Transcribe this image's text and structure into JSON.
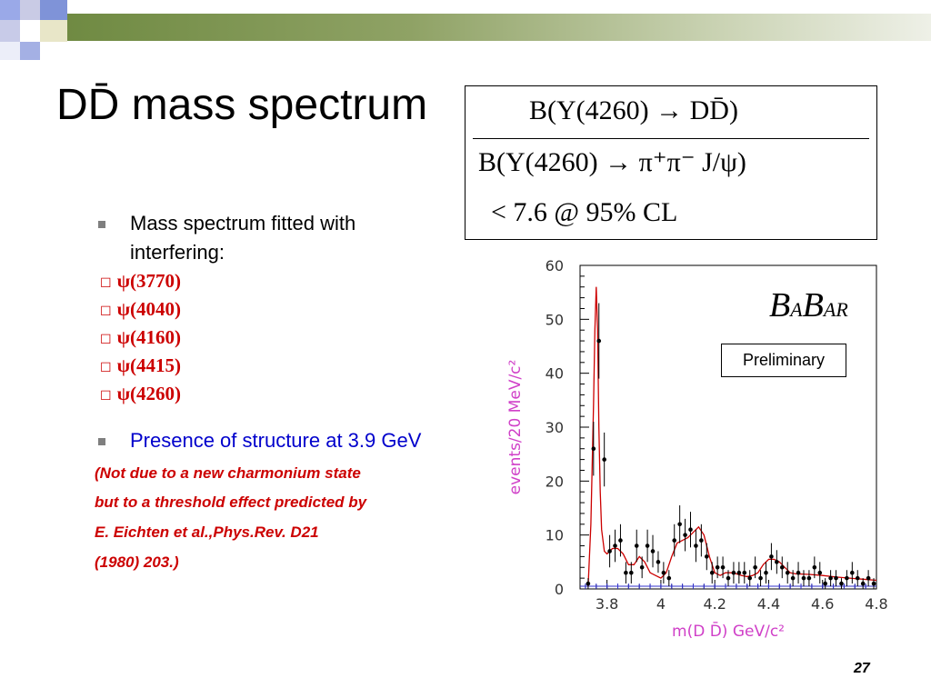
{
  "slide": {
    "title": "DD̄ mass spectrum",
    "page_number": "27"
  },
  "formula": {
    "numerator": "B(Y(4260) → DD̄)",
    "denominator": "B(Y(4260) → π⁺π⁻ J/ψ)",
    "limit": "< 7.6 @ 95% CL"
  },
  "bullets": [
    {
      "text": "Mass spectrum fitted with"
    },
    {
      "text": "interfering:"
    }
  ],
  "resonances": [
    "ψ(3770)",
    "ψ(4040)",
    "ψ(4160)",
    "ψ(4415)",
    "ψ(4260)"
  ],
  "structure_bullet": "Presence of structure at 3.9 GeV",
  "notes": [
    "(Not due to a new charmonium state",
    "but to a threshold effect predicted by",
    " E. Eichten et al.,Phys.Rev. D21",
    "(1980) 203.)"
  ],
  "colors": {
    "accent_red": "#cc0000",
    "bullet_blue": "#0000cc",
    "axis_label_magenta": "#d040c8",
    "fit_red": "#cc0000",
    "background_blue": "#3333cc"
  },
  "chart_data": {
    "type": "scatter",
    "xlabel": "m(D D̄) GeV/c²",
    "ylabel": "events/20 MeV/c²",
    "xlim": [
      3.7,
      4.8
    ],
    "ylim": [
      0,
      60
    ],
    "xticks": [
      "3.8",
      "4",
      "4.2",
      "4.4",
      "4.6",
      "4.8"
    ],
    "yticks": [
      "0",
      "10",
      "20",
      "30",
      "40",
      "50",
      "60"
    ],
    "logo": {
      "main1": "B",
      "small1": "A",
      "main2": "B",
      "small2": "AR"
    },
    "annotation": "Preliminary",
    "series": [
      {
        "kind": "points",
        "x": [
          3.73,
          3.75,
          3.77,
          3.79,
          3.81,
          3.83,
          3.85,
          3.87,
          3.89,
          3.91,
          3.93,
          3.95,
          3.97,
          3.99,
          4.01,
          4.03,
          4.05,
          4.07,
          4.09,
          4.11,
          4.13,
          4.15,
          4.17,
          4.19,
          4.21,
          4.23,
          4.25,
          4.27,
          4.29,
          4.31,
          4.33,
          4.35,
          4.37,
          4.39,
          4.41,
          4.43,
          4.45,
          4.47,
          4.49,
          4.51,
          4.53,
          4.55,
          4.57,
          4.59,
          4.61,
          4.63,
          4.65,
          4.67,
          4.69,
          4.71,
          4.73,
          4.75,
          4.77,
          4.79
        ],
        "y": [
          1,
          26,
          46,
          24,
          7,
          8,
          9,
          3,
          3,
          8,
          4,
          8,
          7,
          5,
          3,
          2,
          9,
          12,
          10,
          11,
          8,
          9,
          6,
          3,
          4,
          4,
          2,
          3,
          3,
          3,
          2,
          4,
          2,
          3,
          6,
          5,
          4,
          3,
          2,
          3,
          2,
          2,
          4,
          3,
          1,
          2,
          2,
          1,
          2,
          3,
          2,
          1,
          2,
          1
        ],
        "err": [
          1,
          5,
          7,
          5,
          3,
          3,
          3,
          2,
          2,
          3,
          2,
          3,
          3,
          2,
          2,
          1.5,
          3,
          3.5,
          3,
          3.3,
          3,
          3,
          2.5,
          2,
          2,
          2,
          1.5,
          2,
          2,
          2,
          1.5,
          2,
          1.5,
          2,
          2.5,
          2.2,
          2,
          2,
          1.5,
          2,
          1.5,
          1.5,
          2,
          2,
          1,
          1.5,
          1.5,
          1,
          1.5,
          2,
          1.5,
          1,
          1.5,
          1
        ]
      },
      {
        "kind": "fit",
        "x": [
          3.73,
          3.74,
          3.75,
          3.755,
          3.76,
          3.765,
          3.77,
          3.775,
          3.78,
          3.79,
          3.8,
          3.82,
          3.84,
          3.86,
          3.88,
          3.9,
          3.92,
          3.94,
          3.96,
          3.98,
          4.0,
          4.02,
          4.04,
          4.06,
          4.08,
          4.1,
          4.12,
          4.14,
          4.16,
          4.18,
          4.2,
          4.22,
          4.24,
          4.26,
          4.28,
          4.3,
          4.32,
          4.34,
          4.36,
          4.38,
          4.4,
          4.42,
          4.44,
          4.46,
          4.48,
          4.5,
          4.55,
          4.6,
          4.65,
          4.7,
          4.75,
          4.8
        ],
        "y": [
          0.5,
          12,
          34,
          48,
          56,
          48,
          30,
          18,
          11,
          7,
          6.5,
          7.5,
          7.5,
          6.5,
          4.5,
          4.5,
          6,
          5,
          3,
          2.5,
          2,
          3,
          6,
          8.5,
          9,
          9.5,
          10.5,
          11.5,
          10,
          6,
          3,
          2.5,
          3,
          3,
          2.8,
          2.5,
          2.3,
          2.5,
          3,
          4.5,
          5.5,
          5.5,
          5,
          4,
          3,
          2.8,
          2.7,
          2.5,
          2.2,
          2.0,
          1.8,
          1.6
        ]
      },
      {
        "kind": "background",
        "x": [
          3.7,
          4.8
        ],
        "y": [
          0.5,
          0.5
        ]
      }
    ]
  }
}
